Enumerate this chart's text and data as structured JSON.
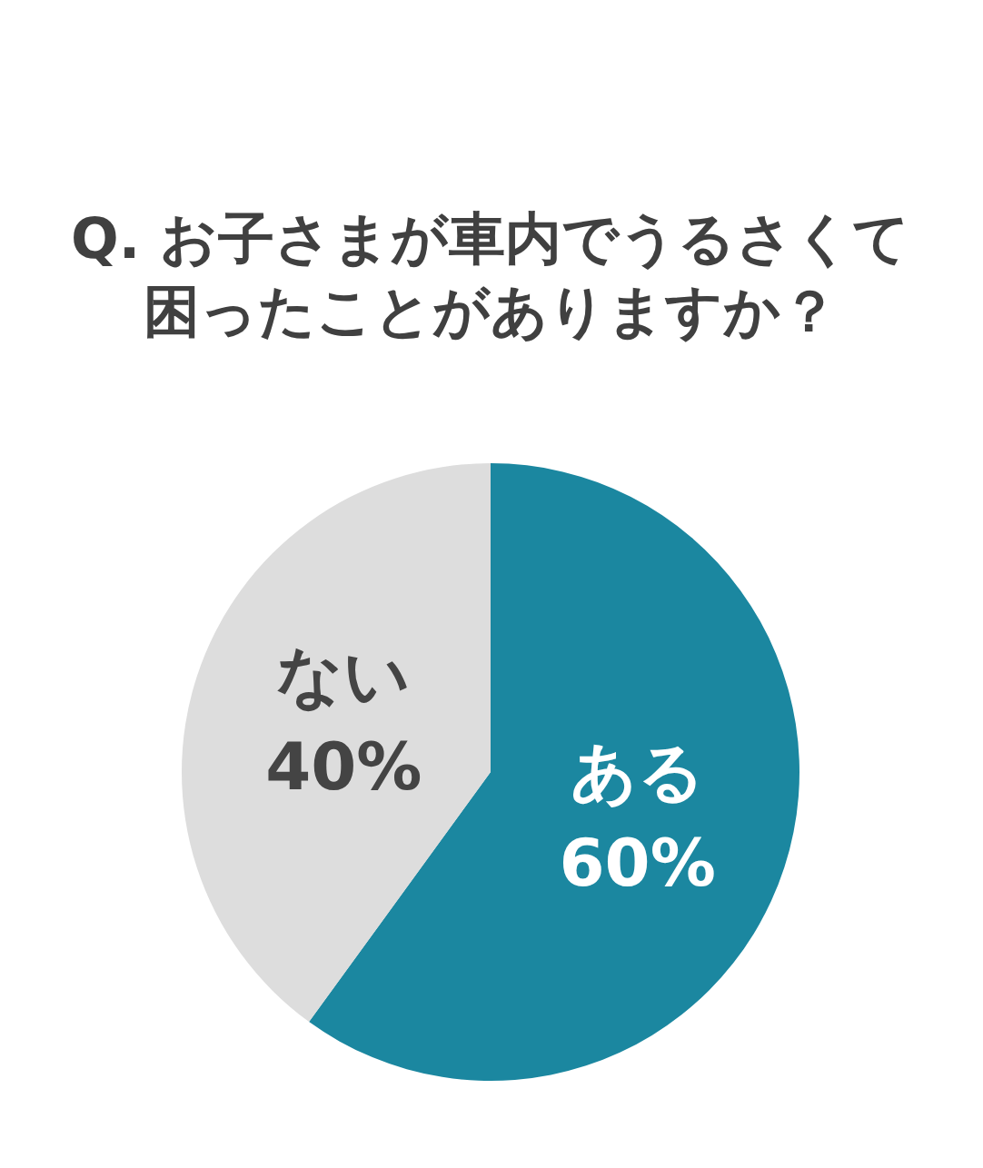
{
  "chart_data": {
    "type": "pie",
    "title": "Q. お子さまが車内でうるさくて困ったことがありますか？",
    "categories": [
      "ある",
      "ない"
    ],
    "values": [
      60,
      40
    ],
    "value_labels": [
      "60%",
      "40%"
    ],
    "colors": [
      "#1b87a0",
      "#dddddd"
    ]
  }
}
